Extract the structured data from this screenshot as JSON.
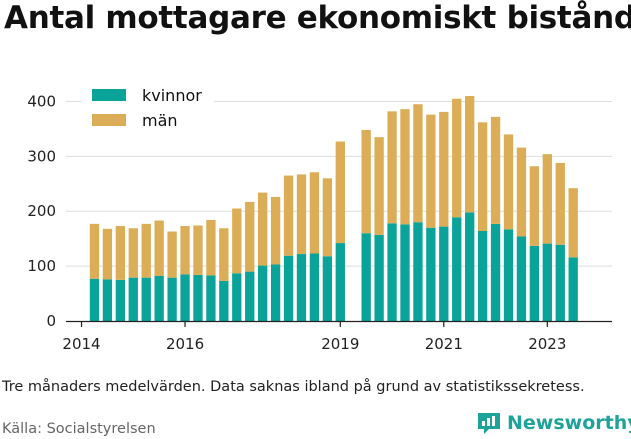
{
  "title": "Antal mottagare ekonomiskt bistånd",
  "caption": "Tre månaders medelvärden. Data saknas ibland på grund av statistikssekretess.",
  "source": "Källa: Socialstyrelsen",
  "brand": {
    "name": "Newsworthy",
    "icon": "newsworthy-logo-icon",
    "color": "#1ea39a"
  },
  "chart_data": {
    "type": "bar",
    "stacked": true,
    "title": "Antal mottagare ekonomiskt bistånd",
    "xlabel": "",
    "ylabel": "",
    "ylim": [
      0,
      430
    ],
    "yticks": [
      0,
      100,
      200,
      300,
      400
    ],
    "xticks": [
      {
        "label": "2014",
        "x": 2014.0
      },
      {
        "label": "2016",
        "x": 2016.0
      },
      {
        "label": "2019",
        "x": 2019.0
      },
      {
        "label": "2021",
        "x": 2021.0
      },
      {
        "label": "2023",
        "x": 2023.0
      }
    ],
    "xlim": [
      2013.7,
      2024.25
    ],
    "grid": "horizontal",
    "legend": "top-left",
    "x": [
      2014.25,
      2014.5,
      2014.75,
      2015.0,
      2015.25,
      2015.5,
      2015.75,
      2016.0,
      2016.25,
      2016.5,
      2016.75,
      2017.0,
      2017.25,
      2017.5,
      2017.75,
      2018.0,
      2018.25,
      2018.5,
      2018.75,
      2019.0,
      2019.5,
      2019.75,
      2020.0,
      2020.25,
      2020.5,
      2020.75,
      2021.0,
      2021.25,
      2021.5,
      2021.75,
      2022.0,
      2022.25,
      2022.5,
      2022.75,
      2023.0,
      2023.25,
      2023.5,
      2023.75
    ],
    "series": [
      {
        "name": "kvinnor",
        "color": "#0aa39a",
        "values": [
          77,
          76,
          75,
          79,
          79,
          82,
          79,
          85,
          84,
          83,
          73,
          87,
          90,
          101,
          103,
          119,
          122,
          123,
          118,
          142,
          160,
          157,
          178,
          176,
          180,
          170,
          172,
          189,
          198,
          164,
          177,
          167,
          154,
          137,
          141,
          139,
          116,
          0
        ]
      },
      {
        "name": "män",
        "color": "#dcad57",
        "values": [
          100,
          92,
          98,
          90,
          98,
          101,
          84,
          88,
          90,
          101,
          96,
          118,
          127,
          133,
          123,
          146,
          145,
          148,
          142,
          185,
          188,
          178,
          204,
          210,
          215,
          206,
          209,
          216,
          212,
          198,
          195,
          173,
          162,
          145,
          163,
          149,
          126,
          0
        ]
      }
    ]
  }
}
